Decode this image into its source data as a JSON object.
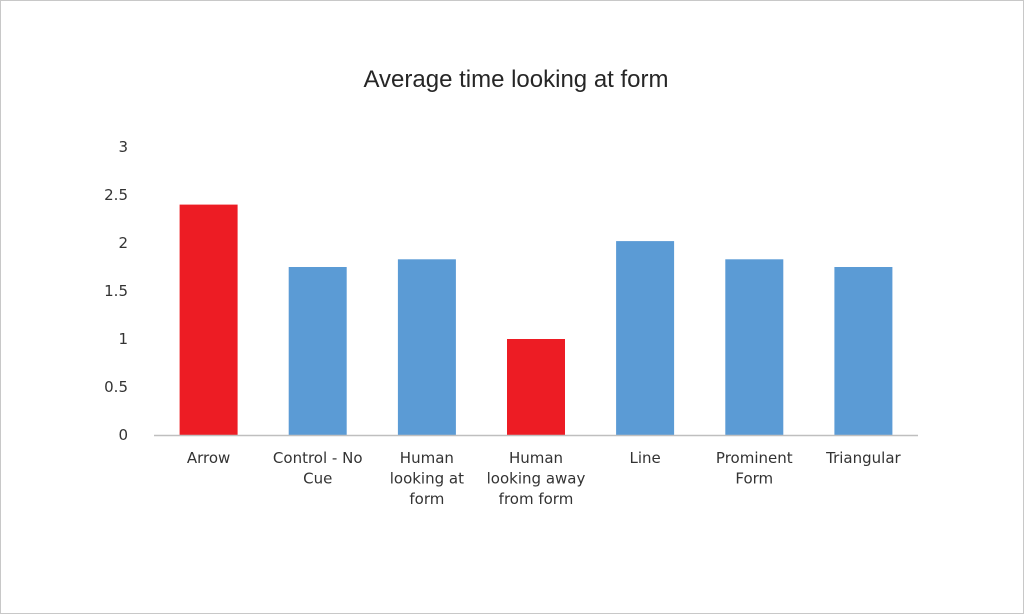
{
  "chart_data": {
    "type": "bar",
    "title": "Average time looking at form",
    "xlabel": "",
    "ylabel": "",
    "ylim": [
      0,
      3
    ],
    "yticks": [
      "0",
      "0.5",
      "1",
      "1.5",
      "2",
      "2.5",
      "3"
    ],
    "grid": false,
    "legend": "none",
    "categories": [
      [
        "Arrow"
      ],
      [
        "Control - No",
        "Cue"
      ],
      [
        "Human",
        "looking at",
        "form"
      ],
      [
        "Human",
        "looking away",
        "from form"
      ],
      [
        "Line"
      ],
      [
        "Prominent",
        "Form"
      ],
      [
        "Triangular"
      ]
    ],
    "values": [
      2.4,
      1.75,
      1.83,
      1.0,
      2.02,
      1.83,
      1.75
    ],
    "bar_colors": [
      "#ed1c24",
      "#5b9bd5",
      "#5b9bd5",
      "#ed1c24",
      "#5b9bd5",
      "#5b9bd5",
      "#5b9bd5"
    ],
    "axis_color": "#bfbfbf"
  }
}
